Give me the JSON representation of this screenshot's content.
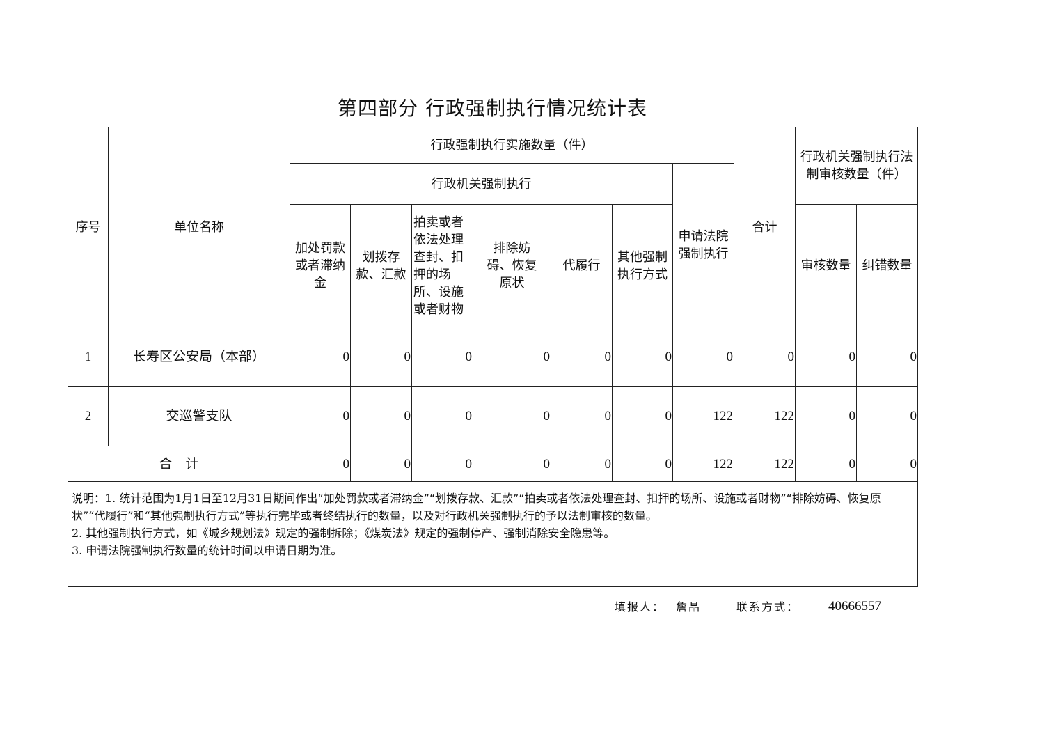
{
  "title": "第四部分  行政强制执行情况统计表",
  "headers": {
    "seq": "序号",
    "unit": "单位名称",
    "impl_count": "行政强制执行实施数量（件）",
    "agency_exec": "行政机关强制执行",
    "court_exec": "申请法院强制执行",
    "total": "合计",
    "review_count": "行政机关强制执行法制审核数量（件）",
    "sub": [
      "加处罚款或者滞纳金",
      "划拨存款、汇款",
      "拍卖或者依法处理查封、扣押的场所、设施或者财物",
      "排除妨碍、恢复原状",
      "代履行",
      "其他强制执行方式"
    ],
    "review_sub": [
      "审核数量",
      "纠错数量"
    ]
  },
  "rows": [
    {
      "seq": "1",
      "unit": "长寿区公安局（本部）",
      "values": [
        "0",
        "0",
        "0",
        "0",
        "0",
        "0",
        "0",
        "0",
        "0",
        "0"
      ]
    },
    {
      "seq": "2",
      "unit": "交巡警支队",
      "values": [
        "0",
        "0",
        "0",
        "0",
        "0",
        "0",
        "122",
        "122",
        "0",
        "0"
      ]
    }
  ],
  "total_row": {
    "label": "合    计",
    "values": [
      "0",
      "0",
      "0",
      "0",
      "0",
      "0",
      "122",
      "122",
      "0",
      "0"
    ]
  },
  "notes": [
    "说明：1. 统计范围为1月1日至12月31日期间作出“加处罚款或者滞纳金”“划拨存款、汇款”“拍卖或者依法处理查封、扣押的场所、设施或者财物”“排除妨碍、恢复原状”“代履行”和“其他强制执行方式”等执行完毕或者终结执行的数量，以及对行政机关强制执行的予以法制审核的数量。",
    "2. 其他强制执行方式，如《城乡规划法》规定的强制拆除；《煤炭法》规定的强制停产、强制消除安全隐患等。",
    "3. 申请法院强制执行数量的统计时间以申请日期为准。"
  ],
  "footer": {
    "filler_label": "填报人：",
    "filler": "詹晶",
    "contact_label": "联系方式：",
    "phone": "40666557"
  }
}
